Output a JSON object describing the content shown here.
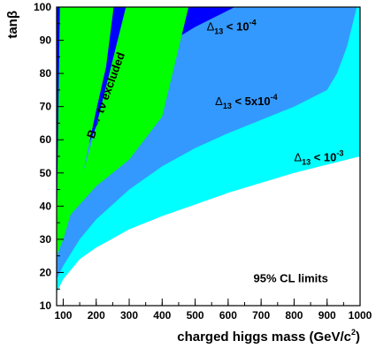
{
  "chart_data": {
    "type": "area",
    "title": "",
    "xlabel": {
      "main": "charged higgs mass (GeV/c",
      "sup": "2",
      "end": ")"
    },
    "ylabel": "tanβ",
    "xlim": [
      80,
      1000
    ],
    "ylim": [
      10,
      100
    ],
    "x_ticks": [
      100,
      200,
      300,
      400,
      500,
      600,
      700,
      800,
      900,
      1000
    ],
    "y_ticks": [
      10,
      20,
      30,
      40,
      50,
      60,
      70,
      80,
      90,
      100
    ],
    "grid": false,
    "colors": {
      "excluded": "#00ff00",
      "dark_blue": "#0000ff",
      "mid_blue": "#3399ff",
      "cyan": "#00ffff",
      "allowed": "#ffffff"
    },
    "regions": [
      {
        "name": "cyan-band",
        "color": "#00ffff",
        "upper": [
          [
            80,
            14
          ],
          [
            100,
            18
          ],
          [
            150,
            24
          ],
          [
            200,
            27.5
          ],
          [
            300,
            33
          ],
          [
            400,
            37
          ],
          [
            500,
            40.5
          ],
          [
            600,
            44
          ],
          [
            700,
            47
          ],
          [
            800,
            50
          ],
          [
            900,
            52.5
          ],
          [
            1000,
            55
          ]
        ]
      },
      {
        "name": "delta13-1e-3",
        "color": "#3399ff",
        "upper": [
          [
            80,
            18
          ],
          [
            100,
            22
          ],
          [
            150,
            30
          ],
          [
            200,
            36
          ],
          [
            300,
            45
          ],
          [
            400,
            52
          ],
          [
            500,
            57.5
          ],
          [
            600,
            62
          ],
          [
            700,
            66
          ],
          [
            800,
            70
          ],
          [
            900,
            75
          ],
          [
            930,
            80
          ],
          [
            960,
            88
          ],
          [
            990,
            100
          ]
        ]
      },
      {
        "name": "delta13-5e-4",
        "color": "#0000ff",
        "upper": [
          [
            80,
            26
          ],
          [
            100,
            37
          ],
          [
            150,
            52
          ],
          [
            200,
            64
          ],
          [
            250,
            73
          ],
          [
            300,
            80
          ],
          [
            400,
            88
          ],
          [
            500,
            94
          ],
          [
            560,
            97
          ],
          [
            620,
            100
          ]
        ]
      },
      {
        "name": "delta13-1e-4",
        "color": "#0000ff",
        "upper": [
          [
            80,
            31
          ],
          [
            90,
            100
          ]
        ]
      },
      {
        "name": "b-to-tau-nu-inner",
        "color": "#00ff00",
        "polygon": [
          [
            90,
            100
          ],
          [
            80,
            31
          ],
          [
            80,
            25
          ],
          [
            100,
            30
          ],
          [
            160,
            50
          ],
          [
            198,
            68
          ],
          [
            230,
            82
          ],
          [
            253,
            100
          ]
        ]
      },
      {
        "name": "b-to-tau-nu-outer",
        "color": "#00ff00",
        "polygon": [
          [
            290,
            100
          ],
          [
            200,
            64
          ],
          [
            160,
            50
          ],
          [
            100,
            35
          ],
          [
            200,
            46
          ],
          [
            300,
            54
          ],
          [
            400,
            67
          ],
          [
            480,
            100
          ]
        ]
      }
    ],
    "annotations": [
      {
        "id": "b-tau-nu",
        "text": "B → τν excluded",
        "x": 240,
        "y": 73,
        "rotate": -70
      },
      {
        "id": "d13-1e-4",
        "symbol": "Δ",
        "sub": "13",
        "rel": " < ",
        "value": "10",
        "sup": "-4",
        "x": 610,
        "y": 93
      },
      {
        "id": "d13-5e-4",
        "symbol": "Δ",
        "sub": "13",
        "rel": " < ",
        "value": "5x10",
        "sup": "-4",
        "x": 655,
        "y": 70.5
      },
      {
        "id": "d13-1e-3",
        "symbol": "Δ",
        "sub": "13",
        "rel": " < ",
        "value": "10",
        "sup": "-3",
        "x": 875,
        "y": 53.5
      },
      {
        "id": "cl-limits",
        "text": "95% CL limits",
        "x": 790,
        "y": 17
      }
    ]
  }
}
